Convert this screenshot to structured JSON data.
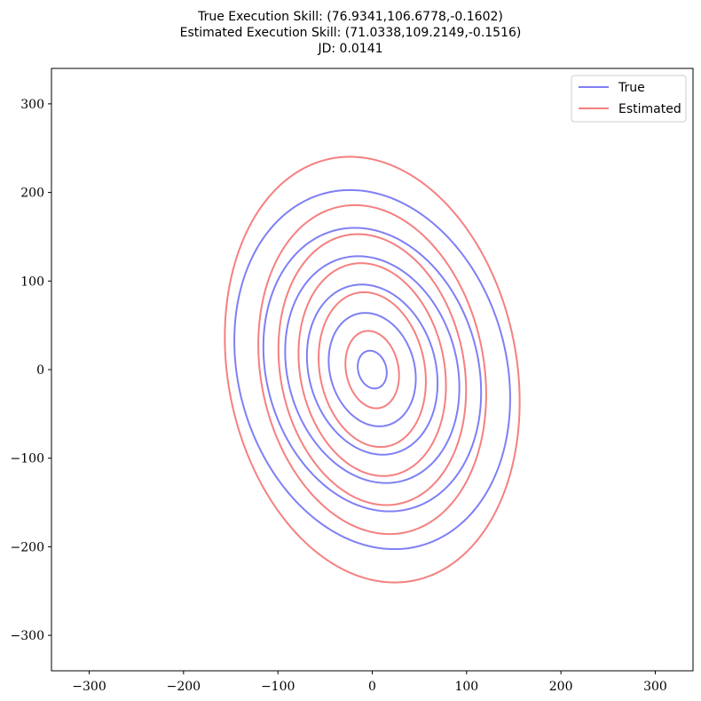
{
  "chart_data": {
    "type": "line",
    "title_lines": [
      "True Execution Skill: (76.9341,106.6778,-0.1602)",
      "Estimated Execution Skill: (71.0338,109.2149,-0.1516)",
      "JD: 0.0141"
    ],
    "xlabel": "",
    "ylabel": "",
    "xlim": [
      -340,
      340
    ],
    "ylim": [
      -340,
      340
    ],
    "xticks": [
      -300,
      -200,
      -100,
      0,
      100,
      200,
      300
    ],
    "yticks": [
      -300,
      -200,
      -100,
      0,
      100,
      200,
      300
    ],
    "xtick_labels": [
      "−300",
      "−200",
      "−100",
      "0",
      "100",
      "200",
      "300"
    ],
    "ytick_labels": [
      "−300",
      "−200",
      "−100",
      "0",
      "100",
      "200",
      "300"
    ],
    "grid": false,
    "legend_position": "top-right",
    "series": [
      {
        "name": "True",
        "color": "#7f7ff5",
        "sigma_x": 76.9341,
        "sigma_y": 106.6778,
        "rho": -0.1602,
        "contour_levels": [
          0.2,
          0.6,
          0.9,
          1.2,
          1.5,
          1.9
        ]
      },
      {
        "name": "Estimated",
        "color": "#f58080",
        "sigma_x": 71.0338,
        "sigma_y": 109.2149,
        "rho": -0.1516,
        "contour_levels": [
          0.4,
          0.8,
          1.1,
          1.4,
          1.7,
          2.2
        ]
      }
    ]
  }
}
